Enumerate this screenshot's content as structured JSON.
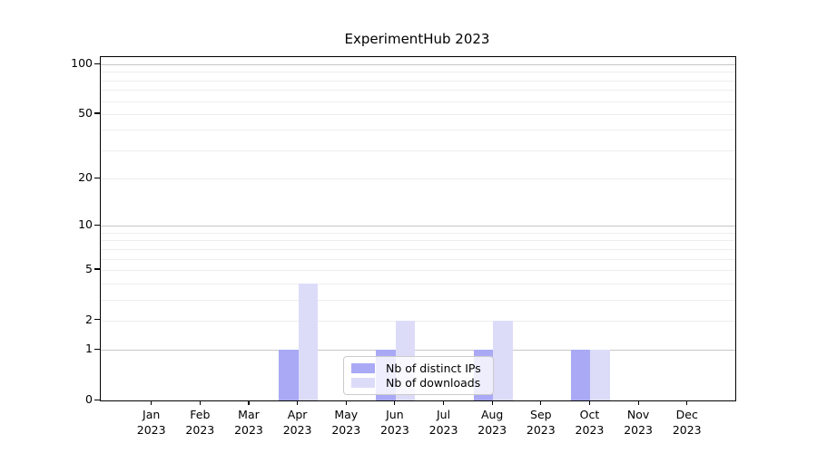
{
  "chart_data": {
    "type": "bar",
    "title": "ExperimentHub 2023",
    "categories": [
      "Jan",
      "Feb",
      "Mar",
      "Apr",
      "May",
      "Jun",
      "Jul",
      "Aug",
      "Sep",
      "Oct",
      "Nov",
      "Dec"
    ],
    "year_label": "2023",
    "series": [
      {
        "name": "Nb of distinct IPs",
        "color": "#a9a9f5",
        "values": [
          0,
          0,
          0,
          1,
          0,
          1,
          0,
          1,
          0,
          1,
          0,
          0
        ]
      },
      {
        "name": "Nb of downloads",
        "color": "#dcdcf9",
        "values": [
          0,
          0,
          0,
          4,
          0,
          2,
          0,
          2,
          0,
          1,
          0,
          0
        ]
      }
    ],
    "yscale": "log1p",
    "ylim": [
      0,
      110
    ],
    "y_tick_values": [
      0,
      1,
      2,
      5,
      10,
      20,
      50,
      100
    ],
    "y_tick_labels": [
      "0",
      "1",
      "2",
      "5",
      "10",
      "20",
      "50",
      "100"
    ],
    "y_major_gridlines": [
      1,
      10,
      100
    ],
    "y_minor_gridlines": [
      2,
      3,
      4,
      5,
      6,
      7,
      8,
      9,
      20,
      30,
      40,
      50,
      60,
      70,
      80,
      90
    ],
    "grid": true,
    "legend_position": "lower center"
  },
  "colors": {
    "axis": "#000000",
    "grid_major": "#c6c6c6",
    "grid_minor": "#ededed",
    "legend_border": "#cccccc"
  }
}
